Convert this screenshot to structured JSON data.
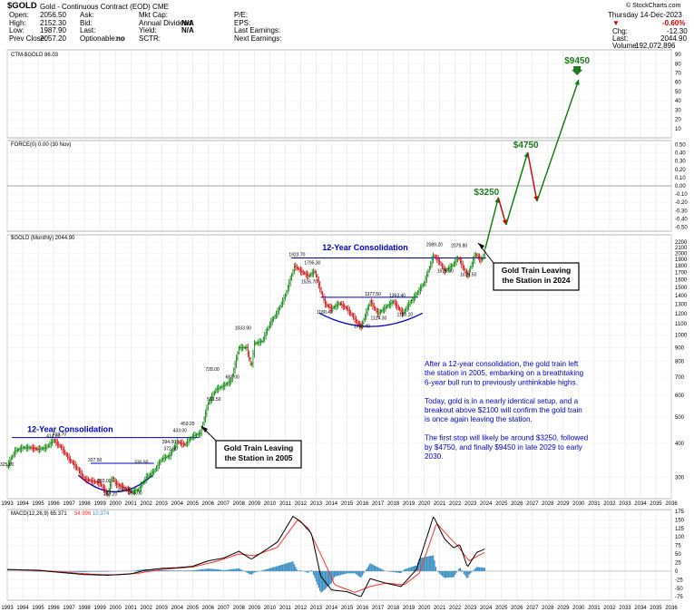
{
  "header": {
    "symbol": "$GOLD",
    "name": "Gold - Continuous Contract (EOD) CME",
    "source": "© StockCharts.com",
    "date": "Thursday 14-Dec-2023",
    "change_pct": "-0.60%",
    "chg_label": "Chg:",
    "chg_value": "-12.30",
    "last_label": "Last:",
    "last_value": "2044.90",
    "volume_label": "Volume:",
    "volume_value": "192,072,896",
    "stats": [
      {
        "label": "Open:",
        "value": "2056.50"
      },
      {
        "label": "High:",
        "value": "2152.30"
      },
      {
        "label": "Low:",
        "value": "1987.90"
      },
      {
        "label": "Prev Close:",
        "value": "2057.20"
      }
    ],
    "quote": [
      {
        "label": "Ask:",
        "value": ""
      },
      {
        "label": "Bid:",
        "value": ""
      },
      {
        "label": "Last:",
        "value": ""
      },
      {
        "label": "Optionable:",
        "value": "no"
      }
    ],
    "fund": [
      {
        "label": "Mkt Cap:",
        "value": ""
      },
      {
        "label": "Annual Dividend:",
        "value": "N/A"
      },
      {
        "label": "Yield:",
        "value": "N/A"
      },
      {
        "label": "SCTR:",
        "value": ""
      }
    ],
    "earn": [
      {
        "label": "P/E:",
        "value": ""
      },
      {
        "label": "EPS:",
        "value": ""
      },
      {
        "label": "Last Earnings:",
        "value": ""
      },
      {
        "label": "Next Earnings:",
        "value": ""
      }
    ]
  },
  "panels": {
    "ctm_label": "CTM-$GOLD 86.03",
    "force_label": "FORCE(0) 0.00 (30 Nov)",
    "price_label": "$GOLD (Monthly) 2044.90",
    "macd_label": "MACD(12,26,9) 65.371",
    "macd_sig_value": "54.996",
    "macd_hist_value": "10.374"
  },
  "colors": {
    "price": "#000000",
    "up": "#008000",
    "down": "#cc0000",
    "channel": "#0000cc",
    "macd": "#000000",
    "signal": "#ff3030",
    "hist": "#3a8fc0",
    "annotation": "#0000cc"
  },
  "annotations": {
    "consol_2011": "12-Year Consolidation",
    "consol_1996": "12-Year Consolidation",
    "train_2024": [
      "Gold Train Leaving",
      "the Station in 2024"
    ],
    "train_2005": [
      "Gold Train Leaving",
      "the Station in 2005"
    ],
    "targets": [
      "$3250",
      "$4750",
      "$9450"
    ],
    "commentary": [
      "After a 12-year consolidation, the gold train left",
      "the station in 2005, embarking on a breathtaking",
      "6-year bull run to previously unthinkable highs.",
      "",
      "Today, gold is in a nearly identical setup, and a",
      "breakout above $2100 will confirm the gold train",
      "is once again leaving the station.",
      "",
      "The first stop will likely be around $3250, followed",
      "by $4750, and finally $9450 in late 2029 to early",
      "2030."
    ]
  },
  "price_labels": [
    {
      "t": "414.00",
      "x": 1996.0,
      "y": 414
    },
    {
      "t": "419.70",
      "x": 1996.4,
      "y": 419.7
    },
    {
      "t": "325.00",
      "x": 1993.0,
      "y": 325
    },
    {
      "t": "337.50",
      "x": 1998.7,
      "y": 337.5
    },
    {
      "t": "283.00",
      "x": 1999.3,
      "y": 283
    },
    {
      "t": "253.20",
      "x": 1999.7,
      "y": 253.2
    },
    {
      "t": "263.00",
      "x": 2000.6,
      "y": 263
    },
    {
      "t": "255.00",
      "x": 2001.3,
      "y": 255
    },
    {
      "t": "330.50",
      "x": 2001.7,
      "y": 330.5
    },
    {
      "t": "372.00",
      "x": 2003.6,
      "y": 372
    },
    {
      "t": "394.00",
      "x": 2003.5,
      "y": 394
    },
    {
      "t": "433.00",
      "x": 2004.2,
      "y": 433
    },
    {
      "t": "459.20",
      "x": 2004.7,
      "y": 459.2
    },
    {
      "t": "563.50",
      "x": 2006.4,
      "y": 563.5
    },
    {
      "t": "728.00",
      "x": 2006.3,
      "y": 728
    },
    {
      "t": "681.00",
      "x": 2007.6,
      "y": 681
    },
    {
      "t": "1033.90",
      "x": 2008.2,
      "y": 1033.9
    },
    {
      "t": "1923.70",
      "x": 2011.7,
      "y": 1923.7
    },
    {
      "t": "1795.30",
      "x": 2012.7,
      "y": 1795.3
    },
    {
      "t": "1526.70",
      "x": 2012.5,
      "y": 1526.7
    },
    {
      "t": "1180.40",
      "x": 2013.5,
      "y": 1180.4
    },
    {
      "t": "1046.40",
      "x": 2015.9,
      "y": 1046.4
    },
    {
      "t": "1377.50",
      "x": 2016.6,
      "y": 1377.5
    },
    {
      "t": "1124.30",
      "x": 2017.0,
      "y": 1124.3
    },
    {
      "t": "1160.10",
      "x": 2018.7,
      "y": 1160.1
    },
    {
      "t": "1363.40",
      "x": 2018.2,
      "y": 1363.4
    },
    {
      "t": "2089.20",
      "x": 2020.6,
      "y": 2089.2
    },
    {
      "t": "1675.30",
      "x": 2021.3,
      "y": 1675.3
    },
    {
      "t": "2079.80",
      "x": 2022.2,
      "y": 2079.8
    },
    {
      "t": "1623.50",
      "x": 2022.8,
      "y": 1623.5
    }
  ],
  "chart_data": {
    "type": "line",
    "xaxis_years": [
      1993,
      1994,
      1995,
      1996,
      1997,
      1998,
      1999,
      2000,
      2001,
      2002,
      2003,
      2004,
      2005,
      2006,
      2007,
      2008,
      2009,
      2010,
      2011,
      2012,
      2013,
      2014,
      2015,
      2016,
      2017,
      2018,
      2019,
      2020,
      2021,
      2022,
      2023,
      2024,
      2025,
      2026,
      2027,
      2028,
      2029,
      2030,
      2031,
      2032,
      2033,
      2034,
      2035,
      2036
    ],
    "price": {
      "scale": "log",
      "ylim": [
        250,
        2200
      ],
      "ticks": [
        300,
        400,
        500,
        600,
        700,
        800,
        900,
        1000,
        1100,
        1200,
        1300,
        1400,
        1500,
        1600,
        1700,
        1800,
        1900,
        2000,
        2100,
        2200
      ],
      "series": [
        {
          "x": 1993.0,
          "y": 330
        },
        {
          "x": 1993.5,
          "y": 375
        },
        {
          "x": 1994.0,
          "y": 385
        },
        {
          "x": 1994.5,
          "y": 385
        },
        {
          "x": 1995.0,
          "y": 380
        },
        {
          "x": 1995.5,
          "y": 385
        },
        {
          "x": 1996.0,
          "y": 410
        },
        {
          "x": 1996.5,
          "y": 385
        },
        {
          "x": 1997.0,
          "y": 350
        },
        {
          "x": 1997.5,
          "y": 325
        },
        {
          "x": 1998.0,
          "y": 295
        },
        {
          "x": 1998.5,
          "y": 290
        },
        {
          "x": 1999.0,
          "y": 285
        },
        {
          "x": 1999.5,
          "y": 258
        },
        {
          "x": 1999.8,
          "y": 300
        },
        {
          "x": 2000.0,
          "y": 285
        },
        {
          "x": 2000.5,
          "y": 275
        },
        {
          "x": 2001.0,
          "y": 265
        },
        {
          "x": 2001.5,
          "y": 270
        },
        {
          "x": 2002.0,
          "y": 300
        },
        {
          "x": 2002.5,
          "y": 315
        },
        {
          "x": 2003.0,
          "y": 350
        },
        {
          "x": 2003.5,
          "y": 360
        },
        {
          "x": 2004.0,
          "y": 405
        },
        {
          "x": 2004.5,
          "y": 395
        },
        {
          "x": 2005.0,
          "y": 425
        },
        {
          "x": 2005.5,
          "y": 435
        },
        {
          "x": 2006.0,
          "y": 560
        },
        {
          "x": 2006.5,
          "y": 630
        },
        {
          "x": 2007.0,
          "y": 650
        },
        {
          "x": 2007.5,
          "y": 680
        },
        {
          "x": 2008.0,
          "y": 900
        },
        {
          "x": 2008.5,
          "y": 900
        },
        {
          "x": 2008.8,
          "y": 760
        },
        {
          "x": 2009.0,
          "y": 930
        },
        {
          "x": 2009.5,
          "y": 950
        },
        {
          "x": 2010.0,
          "y": 1100
        },
        {
          "x": 2010.5,
          "y": 1220
        },
        {
          "x": 2011.0,
          "y": 1400
        },
        {
          "x": 2011.6,
          "y": 1800
        },
        {
          "x": 2012.0,
          "y": 1720
        },
        {
          "x": 2012.5,
          "y": 1650
        },
        {
          "x": 2012.9,
          "y": 1720
        },
        {
          "x": 2013.3,
          "y": 1450
        },
        {
          "x": 2013.6,
          "y": 1300
        },
        {
          "x": 2014.0,
          "y": 1250
        },
        {
          "x": 2014.5,
          "y": 1310
        },
        {
          "x": 2015.0,
          "y": 1250
        },
        {
          "x": 2015.9,
          "y": 1070
        },
        {
          "x": 2016.5,
          "y": 1330
        },
        {
          "x": 2017.0,
          "y": 1200
        },
        {
          "x": 2017.6,
          "y": 1280
        },
        {
          "x": 2018.0,
          "y": 1330
        },
        {
          "x": 2018.6,
          "y": 1200
        },
        {
          "x": 2019.0,
          "y": 1300
        },
        {
          "x": 2019.5,
          "y": 1420
        },
        {
          "x": 2020.0,
          "y": 1560
        },
        {
          "x": 2020.6,
          "y": 1970
        },
        {
          "x": 2021.0,
          "y": 1850
        },
        {
          "x": 2021.3,
          "y": 1720
        },
        {
          "x": 2021.8,
          "y": 1800
        },
        {
          "x": 2022.2,
          "y": 1930
        },
        {
          "x": 2022.8,
          "y": 1650
        },
        {
          "x": 2023.3,
          "y": 1990
        },
        {
          "x": 2023.7,
          "y": 1880
        },
        {
          "x": 2023.95,
          "y": 2045
        }
      ]
    },
    "force": {
      "ticks": [
        -0.5,
        -0.4,
        -0.3,
        -0.2,
        -0.1,
        0.0,
        0.1,
        0.2,
        0.3,
        0.4,
        0.5
      ],
      "ylim": [
        -0.55,
        0.55
      ]
    },
    "ctm": {
      "ticks": [
        10,
        20,
        30,
        40,
        50,
        60,
        70,
        80,
        90
      ],
      "ylim": [
        0,
        95
      ]
    },
    "projection": [
      {
        "x": 2024.0,
        "y": 0.0,
        "arrow": "up"
      },
      {
        "x": 2025.0,
        "y": -0.62,
        "arrow": "down"
      },
      {
        "x": 2026.7,
        "y": -0.2,
        "arrow": "up"
      },
      {
        "x": 2027.4,
        "y": -0.36,
        "arrow": "down"
      },
      {
        "x": 2030.0,
        "y": 0.0,
        "arrow": "up"
      }
    ],
    "macd": {
      "ylim": [
        -85,
        180
      ],
      "ticks": [
        -75,
        -50,
        -25,
        0,
        25,
        50,
        75,
        100,
        125,
        150,
        175
      ],
      "macd": [
        [
          1993,
          5
        ],
        [
          1995,
          2
        ],
        [
          1997,
          -6
        ],
        [
          1998,
          -10
        ],
        [
          1999.5,
          -12
        ],
        [
          2001,
          -8
        ],
        [
          2002,
          3
        ],
        [
          2003,
          8
        ],
        [
          2004,
          10
        ],
        [
          2005,
          14
        ],
        [
          2006,
          30
        ],
        [
          2007,
          38
        ],
        [
          2008,
          58
        ],
        [
          2008.8,
          35
        ],
        [
          2009.5,
          55
        ],
        [
          2010.5,
          85
        ],
        [
          2011.5,
          160
        ],
        [
          2012,
          145
        ],
        [
          2012.7,
          110
        ],
        [
          2013.3,
          -15
        ],
        [
          2014,
          -55
        ],
        [
          2015,
          -60
        ],
        [
          2015.9,
          -75
        ],
        [
          2016.5,
          -22
        ],
        [
          2017.5,
          -35
        ],
        [
          2018.5,
          -45
        ],
        [
          2019.5,
          5
        ],
        [
          2020.6,
          160
        ],
        [
          2021.3,
          95
        ],
        [
          2021.9,
          68
        ],
        [
          2022.3,
          78
        ],
        [
          2022.8,
          12
        ],
        [
          2023.4,
          55
        ],
        [
          2023.95,
          65
        ]
      ],
      "signal": [
        [
          1993,
          4
        ],
        [
          1995,
          3
        ],
        [
          1997,
          -4
        ],
        [
          1998.5,
          -9
        ],
        [
          2000,
          -11
        ],
        [
          2001.5,
          -6
        ],
        [
          2003,
          5
        ],
        [
          2005,
          12
        ],
        [
          2006.5,
          28
        ],
        [
          2008,
          50
        ],
        [
          2009,
          45
        ],
        [
          2010.5,
          70
        ],
        [
          2011.8,
          150
        ],
        [
          2012.5,
          125
        ],
        [
          2013.5,
          30
        ],
        [
          2014.2,
          -40
        ],
        [
          2015.5,
          -62
        ],
        [
          2016.5,
          -45
        ],
        [
          2017.5,
          -35
        ],
        [
          2018.7,
          -40
        ],
        [
          2019.7,
          -5
        ],
        [
          2020.8,
          140
        ],
        [
          2021.6,
          100
        ],
        [
          2022.2,
          72
        ],
        [
          2022.9,
          30
        ],
        [
          2023.5,
          45
        ],
        [
          2023.95,
          55
        ]
      ]
    }
  }
}
